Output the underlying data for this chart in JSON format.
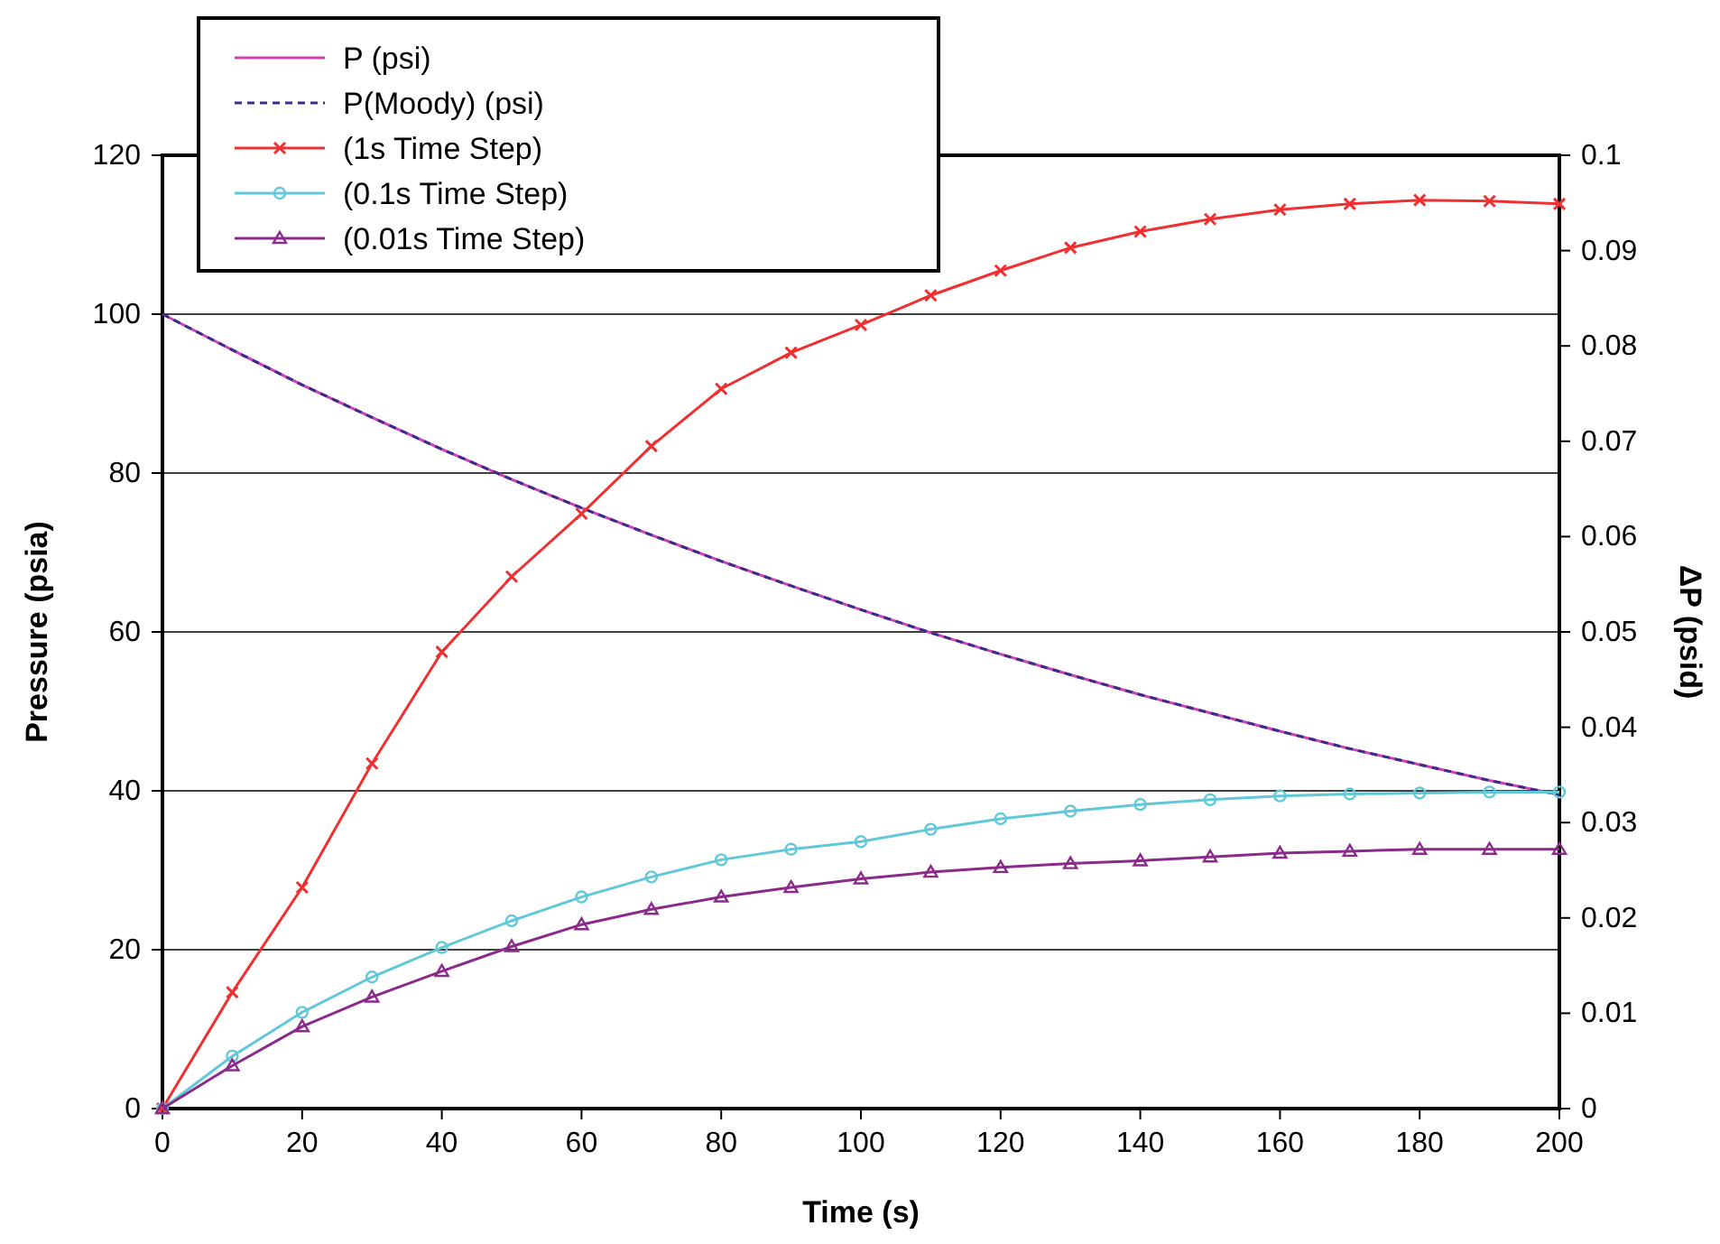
{
  "chart_data": {
    "type": "line",
    "xlabel": "Time (s)",
    "ylabel": "Pressure (psia)",
    "y2label": "ΔP (psid)",
    "x": [
      0,
      10,
      20,
      30,
      40,
      50,
      60,
      70,
      80,
      90,
      100,
      110,
      120,
      130,
      140,
      150,
      160,
      170,
      180,
      190,
      200
    ],
    "xlim": [
      0,
      200
    ],
    "xticks": [
      0,
      20,
      40,
      60,
      80,
      100,
      120,
      140,
      160,
      180,
      200
    ],
    "ylim": [
      0,
      120
    ],
    "yticks": [
      0,
      20,
      40,
      60,
      80,
      100,
      120
    ],
    "y2lim": [
      0,
      0.1
    ],
    "y2ticks": [
      0,
      0.01,
      0.02,
      0.03,
      0.04,
      0.05,
      0.06,
      0.07,
      0.08,
      0.09,
      0.1
    ],
    "grid": "y",
    "legend": "top left",
    "series": [
      {
        "name": "P (psi)",
        "color": "#d040b0",
        "marker": "none",
        "line_style": "solid",
        "values": [
          100,
          95.5,
          91.1,
          87.0,
          83.0,
          79.2,
          75.6,
          72.2,
          68.9,
          65.8,
          62.8,
          59.9,
          57.2,
          54.6,
          52.1,
          49.8,
          47.5,
          45.3,
          43.3,
          41.3,
          39.5
        ]
      },
      {
        "name": "P(Moody) (psi)",
        "color": "#3a2c8c",
        "marker": "none",
        "line_style": "dashed",
        "values": [
          100,
          95.5,
          91.1,
          87.0,
          83.0,
          79.2,
          75.6,
          72.2,
          68.9,
          65.8,
          62.8,
          59.9,
          57.2,
          54.6,
          52.1,
          49.8,
          47.5,
          45.3,
          43.3,
          41.3,
          39.5
        ]
      },
      {
        "name": "(1s Time Step)",
        "color": "#f03030",
        "marker": "cross",
        "line_style": "solid",
        "axis": "y2",
        "values": [
          0,
          0.0122,
          0.0232,
          0.0362,
          0.0479,
          0.0558,
          0.0624,
          0.0695,
          0.0755,
          0.0793,
          0.0822,
          0.0853,
          0.0879,
          0.0903,
          0.092,
          0.0933,
          0.0943,
          0.0949,
          0.0953,
          0.0952,
          0.0949
        ]
      },
      {
        "name": "(0.1s Time Step)",
        "color": "#60c8d8",
        "marker": "circle",
        "line_style": "solid",
        "axis": "y2",
        "values": [
          0,
          0.0055,
          0.0101,
          0.0138,
          0.0169,
          0.0197,
          0.0222,
          0.0243,
          0.0261,
          0.0272,
          0.028,
          0.0293,
          0.0304,
          0.0312,
          0.0319,
          0.0324,
          0.0328,
          0.033,
          0.0331,
          0.0332,
          0.0332
        ]
      },
      {
        "name": "(0.01s Time Step)",
        "color": "#8a2a8a",
        "marker": "triangle",
        "line_style": "solid",
        "axis": "y2",
        "values": [
          0,
          0.0045,
          0.0086,
          0.0117,
          0.0144,
          0.017,
          0.0193,
          0.0209,
          0.0222,
          0.0232,
          0.0241,
          0.0248,
          0.0253,
          0.0257,
          0.026,
          0.0264,
          0.0268,
          0.027,
          0.0272,
          0.0272,
          0.0272
        ]
      }
    ]
  }
}
